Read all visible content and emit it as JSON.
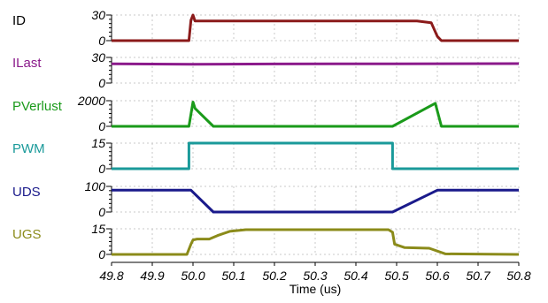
{
  "chart_data": {
    "type": "line",
    "layout": "stacked-panels",
    "grid": true,
    "x": [
      49.8,
      49.9,
      50.0,
      50.1,
      50.2,
      50.3,
      50.4,
      50.5,
      50.6,
      50.7,
      50.8
    ],
    "xlim": [
      49.8,
      50.8
    ],
    "xtick_labels": [
      "49.8",
      "49.9",
      "50.0",
      "50.1",
      "50.2",
      "50.3",
      "50.4",
      "50.5",
      "50.6",
      "50.7",
      "50.8"
    ],
    "xlabel": "Time (us)",
    "panels": [
      {
        "name": "ID",
        "color": "#8b1a1a",
        "ylim": [
          0,
          30
        ],
        "yticks": [
          0,
          30
        ],
        "ytick_labels": [
          "0",
          "30"
        ],
        "points": [
          [
            49.8,
            0
          ],
          [
            49.99,
            0
          ],
          [
            49.995,
            24
          ],
          [
            50.0,
            30
          ],
          [
            50.005,
            23
          ],
          [
            50.3,
            23
          ],
          [
            50.55,
            23
          ],
          [
            50.585,
            21
          ],
          [
            50.6,
            5
          ],
          [
            50.61,
            0
          ],
          [
            50.8,
            0
          ]
        ]
      },
      {
        "name": "ILast",
        "color": "#8b1a8b",
        "ylim": [
          0,
          30
        ],
        "yticks": [
          0,
          30
        ],
        "ytick_labels": [
          "0",
          "30"
        ],
        "points": [
          [
            49.8,
            22.5
          ],
          [
            49.9,
            22.2
          ],
          [
            50.0,
            22
          ],
          [
            50.2,
            22.3
          ],
          [
            50.5,
            22.6
          ],
          [
            50.8,
            22.8
          ]
        ]
      },
      {
        "name": "PVerlust",
        "color": "#1a9a1a",
        "ylim": [
          0,
          2000
        ],
        "yticks": [
          0,
          2000
        ],
        "ytick_labels": [
          "0",
          "2000"
        ],
        "points": [
          [
            49.8,
            0
          ],
          [
            49.99,
            0
          ],
          [
            50.0,
            1900
          ],
          [
            50.005,
            1400
          ],
          [
            50.05,
            0
          ],
          [
            50.49,
            0
          ],
          [
            50.595,
            1800
          ],
          [
            50.61,
            0
          ],
          [
            50.8,
            0
          ]
        ]
      },
      {
        "name": "PWM",
        "color": "#1a9a9a",
        "ylim": [
          0,
          15
        ],
        "yticks": [
          0,
          15
        ],
        "ytick_labels": [
          "0",
          "15"
        ],
        "points": [
          [
            49.8,
            0
          ],
          [
            49.99,
            0
          ],
          [
            49.99,
            15
          ],
          [
            50.49,
            15
          ],
          [
            50.49,
            0
          ],
          [
            50.8,
            0
          ]
        ]
      },
      {
        "name": "UDS",
        "color": "#1a1a8b",
        "ylim": [
          0,
          100
        ],
        "yticks": [
          0,
          100
        ],
        "ytick_labels": [
          "0",
          "100"
        ],
        "points": [
          [
            49.8,
            85
          ],
          [
            49.995,
            85
          ],
          [
            50.05,
            0
          ],
          [
            50.49,
            0
          ],
          [
            50.6,
            85
          ],
          [
            50.8,
            85
          ]
        ]
      },
      {
        "name": "UGS",
        "color": "#8b8b1a",
        "ylim": [
          0,
          15
        ],
        "yticks": [
          0,
          15
        ],
        "ytick_labels": [
          "0",
          "15"
        ],
        "points": [
          [
            49.8,
            0
          ],
          [
            49.985,
            0
          ],
          [
            49.995,
            6
          ],
          [
            50.0,
            8.5
          ],
          [
            50.01,
            9
          ],
          [
            50.04,
            9
          ],
          [
            50.06,
            11
          ],
          [
            50.09,
            13.5
          ],
          [
            50.13,
            14.5
          ],
          [
            50.48,
            14.5
          ],
          [
            50.49,
            13
          ],
          [
            50.495,
            6
          ],
          [
            50.52,
            4
          ],
          [
            50.58,
            3.6
          ],
          [
            50.62,
            0.3
          ],
          [
            50.8,
            0
          ]
        ]
      }
    ]
  }
}
